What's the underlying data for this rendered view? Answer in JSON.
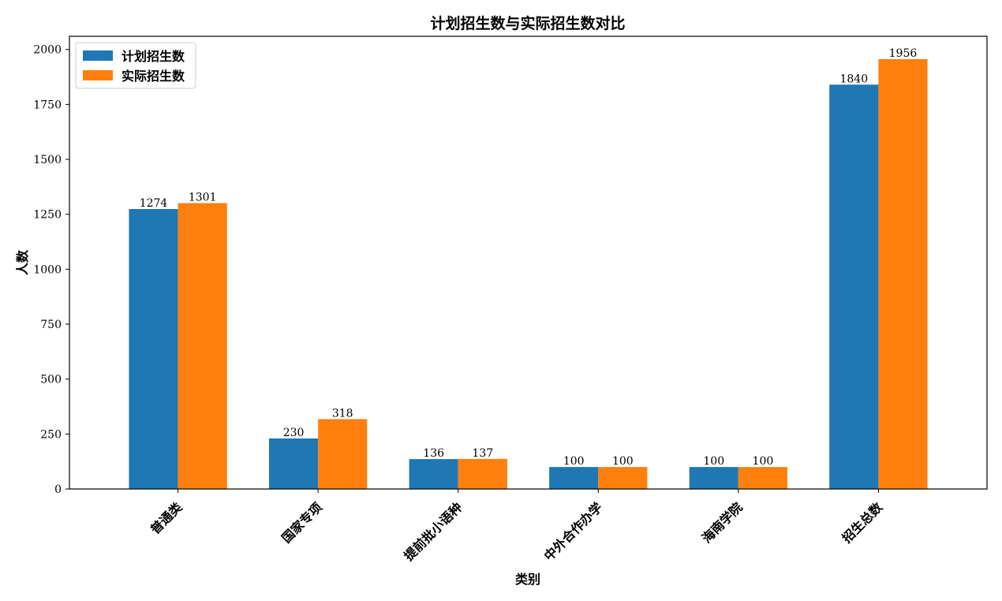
{
  "chart_data": {
    "type": "bar",
    "title": "计划招生数与实际招生数对比",
    "xlabel": "类别",
    "ylabel": "人数",
    "categories": [
      "普通类",
      "国家专项",
      "提前批小语种",
      "中外合作办学",
      "海南学院",
      "招生总数"
    ],
    "series": [
      {
        "name": "计划招生数",
        "color": "#1f77b4",
        "values": [
          1274,
          230,
          136,
          100,
          100,
          1840
        ]
      },
      {
        "name": "实际招生数",
        "color": "#ff7f0e",
        "values": [
          1301,
          318,
          137,
          100,
          100,
          1956
        ]
      }
    ],
    "ylim": [
      0,
      2060
    ],
    "yticks": [
      0,
      250,
      500,
      750,
      1000,
      1250,
      1500,
      1750,
      2000
    ],
    "grid": false,
    "legend_position": "top-left",
    "show_value_labels": true
  }
}
